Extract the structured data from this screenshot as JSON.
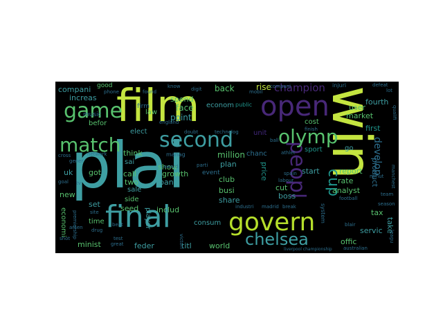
{
  "colors": {
    "background": "#000000",
    "page": "#ffffff",
    "palette": [
      "#c4e540",
      "#3e9ea2",
      "#58c26e",
      "#2d6f8e",
      "#43287d",
      "#b5de2b",
      "#1f958b",
      "#482878"
    ]
  },
  "words": {
    "plai": "plai",
    "win": "win",
    "film": "film",
    "game": "game",
    "open": "open",
    "match": "match",
    "second": "second",
    "olymp": "olymp",
    "peopl": "peopl",
    "final": "final",
    "govern": "govern",
    "chelsea": "chelsea",
    "cup": "cup",
    "champion": "champion",
    "rise": "rise",
    "back": "back",
    "companie": "compani",
    "increas": "increas",
    "spend": "spend",
    "point": "point",
    "face": "face",
    "law": "law",
    "firm": "firm",
    "econom1": "econom",
    "public": "public",
    "user": "user",
    "market": "market",
    "fourth": "fourth",
    "first": "first",
    "develop": "develop",
    "sport": "sport",
    "go": "go",
    "unit": "unit",
    "elect": "elect",
    "befor": "befor",
    "music": "music",
    "good": "good",
    "think": "think",
    "sai": "sai",
    "show": "show",
    "million": "million",
    "chanc": "chanc",
    "plan": "plan",
    "call": "call",
    "growth": "growth",
    "bank": "bank",
    "event": "event",
    "club": "club",
    "busi": "busi",
    "share": "share",
    "price": "price",
    "rate": "rate",
    "start": "start",
    "report": "report",
    "product": "product",
    "analyst": "analyst",
    "cut": "cut",
    "boss": "boss",
    "uk": "uk",
    "got": "got",
    "two": "two",
    "sale": "sale",
    "side": "side",
    "new": "new",
    "set": "set",
    "seed": "seed",
    "time": "time",
    "includ": "includ",
    "player": "player",
    "consum": "consum",
    "world": "world",
    "titl": "titl",
    "feder": "feder",
    "minist": "minist",
    "economi": "economi",
    "tax": "tax",
    "take": "take",
    "servic": "servic",
    "offic": "offic",
    "cost": "cost",
    "industri": "industri",
    "madrid": "madrid",
    "break": "break",
    "manag": "manag",
    "system": "system",
    "injuri": "injuri",
    "know": "know",
    "digit": "digit",
    "found": "found",
    "phone": "phone",
    "england": "england",
    "labour": "labour",
    "spain": "spain",
    "blair": "blair",
    "australian": "australian",
    "great": "great",
    "beat": "beat",
    "site": "site",
    "test": "test",
    "drug": "drug",
    "arsen": "arsen",
    "shot": "shot",
    "premiership": "premiership",
    "goal": "goal",
    "tv": "tv",
    "network": "network",
    "football": "football",
    "team": "team",
    "season": "season",
    "leagu": "leagu",
    "minut": "minut",
    "manchest": "manchest",
    "defeat": "defeat",
    "lot": "lot",
    "mobil": "mobil",
    "technolog": "technolog",
    "ball": "ball",
    "finish": "finish",
    "compani2": "compani",
    "victori": "victori",
    "award": "award",
    "liverpool_championship": "liverpool championship",
    "athlet": "athlet",
    "qualifi": "qualifi",
    "gener": "gener",
    "cross": "cross",
    "parti": "parti",
    "doubt": "doubt"
  }
}
